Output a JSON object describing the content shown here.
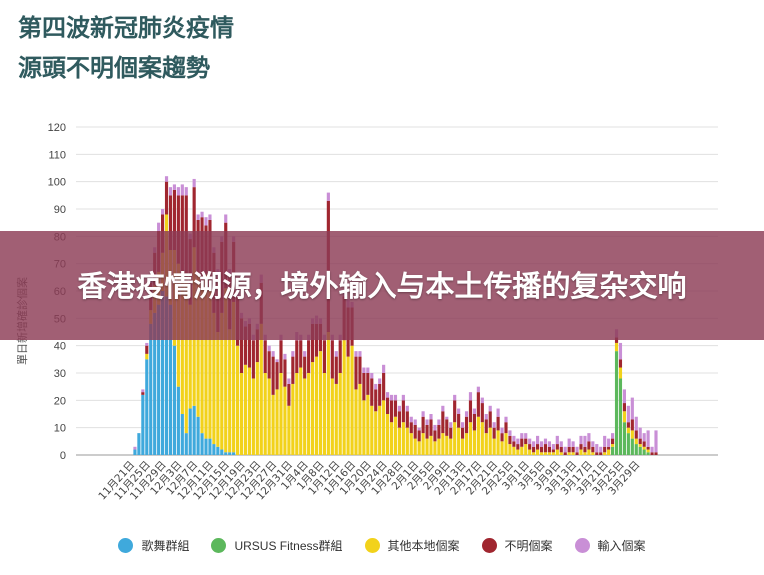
{
  "title": {
    "line1": "第四波新冠肺炎疫情",
    "line2": "源頭不明個案趨勢"
  },
  "banner": {
    "text": "香港疫情溯源，境外输入与本土传播的复杂交响"
  },
  "legend": [
    {
      "label": "歌舞群組",
      "color": "#3fa9dc"
    },
    {
      "label": "URSUS Fitness群組",
      "color": "#5cb85c"
    },
    {
      "label": "其他本地個案",
      "color": "#f2d21b"
    },
    {
      "label": "不明個案",
      "color": "#a0262f"
    },
    {
      "label": "輸入個案",
      "color": "#c98fd6"
    }
  ],
  "chart_data": {
    "type": "bar",
    "stacked": true,
    "title": "",
    "xlabel": "",
    "ylabel": "單日新增確診個案",
    "ylim": [
      0,
      120
    ],
    "yticks": [
      0,
      10,
      20,
      30,
      40,
      50,
      60,
      70,
      80,
      90,
      100,
      110,
      120
    ],
    "grid": true,
    "legend_position": "bottom",
    "x_start": "2020-11-20",
    "x_tick_labels": [
      "11月21日",
      "11月25日",
      "11月29日",
      "12月3日",
      "12月7日",
      "12月11日",
      "12月15日",
      "12月19日",
      "12月23日",
      "12月27日",
      "12月31日",
      "1月4日",
      "1月8日",
      "1月12日",
      "1月16日",
      "1月20日",
      "1月24日",
      "1月28日",
      "2月1日",
      "2月5日",
      "2月9日",
      "2月13日",
      "2月17日",
      "2月21日",
      "2月25日",
      "3月1日",
      "3月5日",
      "3月9日",
      "3月13日",
      "3月17日",
      "3月21日",
      "3月25日",
      "3月29日"
    ],
    "series": [
      {
        "name": "歌舞群組",
        "color": "#3fa9dc",
        "values": [
          0,
          2,
          8,
          22,
          35,
          48,
          52,
          55,
          60,
          58,
          55,
          40,
          25,
          15,
          8,
          17,
          18,
          14,
          8,
          6,
          6,
          4,
          3,
          2,
          1,
          1,
          1,
          0,
          0,
          0,
          0,
          0,
          0,
          0,
          0,
          0,
          0,
          0,
          0,
          0,
          0,
          0,
          0,
          0,
          0,
          0,
          0,
          0,
          0,
          0,
          0,
          0,
          0,
          0,
          0,
          0,
          0,
          0,
          0,
          0,
          0,
          0,
          0,
          0,
          0,
          0,
          0,
          0,
          0,
          0,
          0,
          0,
          0,
          0,
          0,
          0,
          0,
          0,
          0,
          0,
          0,
          0,
          0,
          0,
          0,
          0,
          0,
          0,
          0,
          0,
          0,
          0,
          0,
          0,
          0,
          0,
          0,
          0,
          0,
          0,
          0,
          0,
          0,
          0,
          0,
          0,
          0,
          0,
          0,
          0,
          0,
          0,
          0,
          0,
          0,
          0,
          0,
          0,
          0,
          0,
          0,
          0,
          0,
          0,
          0,
          0,
          0,
          0,
          0,
          0,
          0,
          0,
          0,
          0
        ]
      },
      {
        "name": "URSUS Fitness群組",
        "color": "#5cb85c",
        "values": [
          0,
          0,
          0,
          0,
          0,
          0,
          0,
          0,
          0,
          0,
          0,
          0,
          0,
          0,
          0,
          0,
          0,
          0,
          0,
          0,
          0,
          0,
          0,
          0,
          0,
          0,
          0,
          0,
          0,
          0,
          0,
          0,
          0,
          0,
          0,
          0,
          0,
          0,
          0,
          0,
          0,
          0,
          0,
          0,
          0,
          0,
          0,
          0,
          0,
          0,
          0,
          0,
          0,
          0,
          0,
          0,
          0,
          0,
          0,
          0,
          0,
          0,
          0,
          0,
          0,
          0,
          0,
          0,
          0,
          0,
          0,
          0,
          0,
          0,
          0,
          0,
          0,
          0,
          0,
          0,
          0,
          0,
          0,
          0,
          0,
          0,
          0,
          0,
          0,
          0,
          0,
          0,
          0,
          0,
          0,
          0,
          0,
          0,
          0,
          0,
          0,
          0,
          0,
          0,
          0,
          0,
          0,
          0,
          0,
          0,
          0,
          0,
          0,
          0,
          0,
          0,
          0,
          0,
          0,
          0,
          0,
          0,
          3,
          38,
          28,
          12,
          8,
          6,
          4,
          3,
          2,
          1,
          0,
          0
        ]
      },
      {
        "name": "其他本地個案",
        "color": "#f2d21b",
        "values": [
          0,
          0,
          0,
          0,
          2,
          5,
          10,
          12,
          14,
          30,
          20,
          35,
          45,
          50,
          55,
          38,
          58,
          52,
          55,
          60,
          55,
          48,
          42,
          50,
          60,
          45,
          55,
          40,
          30,
          33,
          32,
          28,
          34,
          48,
          30,
          28,
          22,
          24,
          30,
          25,
          18,
          26,
          30,
          32,
          28,
          30,
          34,
          36,
          38,
          30,
          45,
          28,
          26,
          30,
          42,
          36,
          40,
          24,
          26,
          20,
          22,
          18,
          16,
          18,
          20,
          15,
          12,
          14,
          10,
          12,
          10,
          8,
          6,
          5,
          8,
          6,
          7,
          5,
          6,
          8,
          7,
          6,
          12,
          10,
          6,
          8,
          12,
          9,
          14,
          12,
          8,
          10,
          6,
          9,
          5,
          8,
          4,
          3,
          2,
          3,
          4,
          2,
          1,
          2,
          1,
          1,
          1,
          1,
          2,
          1,
          0,
          1,
          1,
          0,
          2,
          1,
          2,
          1,
          0,
          0,
          1,
          2,
          1,
          3,
          4,
          4,
          2,
          3,
          2,
          1,
          1,
          1,
          0,
          0
        ]
      },
      {
        "name": "不明個案",
        "color": "#a0262f",
        "values": [
          0,
          0,
          0,
          1,
          3,
          10,
          12,
          15,
          14,
          12,
          20,
          22,
          25,
          30,
          32,
          24,
          22,
          20,
          24,
          18,
          25,
          22,
          20,
          26,
          24,
          20,
          22,
          18,
          20,
          14,
          16,
          14,
          12,
          15,
          12,
          10,
          14,
          10,
          12,
          10,
          8,
          10,
          12,
          10,
          8,
          12,
          14,
          12,
          10,
          12,
          48,
          14,
          10,
          12,
          16,
          18,
          14,
          12,
          10,
          10,
          8,
          10,
          8,
          8,
          10,
          6,
          8,
          6,
          6,
          8,
          6,
          4,
          5,
          4,
          6,
          5,
          6,
          4,
          5,
          8,
          6,
          4,
          8,
          5,
          4,
          6,
          8,
          6,
          9,
          7,
          5,
          6,
          4,
          5,
          3,
          4,
          3,
          2,
          2,
          3,
          2,
          2,
          2,
          2,
          2,
          3,
          2,
          1,
          2,
          2,
          1,
          2,
          2,
          1,
          2,
          2,
          3,
          2,
          1,
          1,
          2,
          1,
          2,
          2,
          3,
          3,
          2,
          4,
          3,
          2,
          2,
          1,
          1,
          1
        ]
      },
      {
        "name": "輸入個案",
        "color": "#c98fd6",
        "values": [
          0,
          1,
          0,
          1,
          1,
          2,
          2,
          3,
          2,
          2,
          3,
          2,
          3,
          4,
          3,
          2,
          3,
          2,
          2,
          3,
          2,
          2,
          3,
          2,
          3,
          2,
          2,
          3,
          2,
          2,
          2,
          2,
          2,
          3,
          2,
          2,
          2,
          1,
          2,
          2,
          2,
          2,
          3,
          2,
          2,
          2,
          2,
          3,
          2,
          2,
          3,
          2,
          2,
          2,
          2,
          3,
          2,
          2,
          2,
          2,
          2,
          2,
          2,
          2,
          3,
          2,
          2,
          2,
          2,
          2,
          2,
          2,
          2,
          1,
          2,
          2,
          2,
          2,
          2,
          2,
          1,
          2,
          2,
          2,
          2,
          2,
          3,
          2,
          2,
          2,
          2,
          2,
          2,
          3,
          2,
          2,
          2,
          2,
          2,
          2,
          2,
          2,
          2,
          3,
          2,
          2,
          2,
          2,
          3,
          2,
          2,
          3,
          2,
          2,
          3,
          4,
          3,
          2,
          3,
          2,
          4,
          3,
          2,
          3,
          6,
          5,
          6,
          8,
          5,
          4,
          3,
          6,
          2,
          8
        ]
      }
    ]
  }
}
